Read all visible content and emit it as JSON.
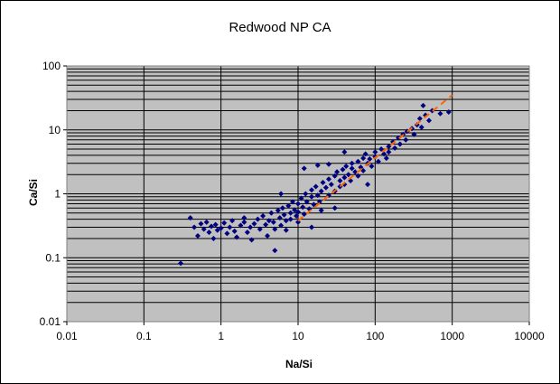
{
  "chart_data": {
    "type": "scatter",
    "title": "Redwood NP CA",
    "xlabel": "Na/Si",
    "ylabel": "Ca/Si",
    "x_scale": "log",
    "y_scale": "log",
    "xlim": [
      0.01,
      10000
    ],
    "ylim": [
      0.01,
      100
    ],
    "x_ticks": [
      "0.01",
      "0.1",
      "1",
      "10",
      "100",
      "1000",
      "10000"
    ],
    "y_ticks": [
      "0.01",
      "0.1",
      "1",
      "10",
      "100"
    ],
    "grid": "on",
    "legend": "none",
    "colors": {
      "plot_bg": "#c0c0c0",
      "marker": "#000080",
      "trend": "#ff6600"
    },
    "trendline": {
      "style": "dashed",
      "x": [
        10,
        1000
      ],
      "y": [
        0.38,
        35
      ]
    },
    "series": [
      {
        "marker": "diamond",
        "points": [
          [
            0.3,
            0.082
          ],
          [
            0.4,
            0.42
          ],
          [
            0.45,
            0.3
          ],
          [
            0.5,
            0.22
          ],
          [
            0.55,
            0.34
          ],
          [
            0.6,
            0.28
          ],
          [
            0.65,
            0.36
          ],
          [
            0.7,
            0.25
          ],
          [
            0.75,
            0.31
          ],
          [
            0.8,
            0.2
          ],
          [
            0.85,
            0.33
          ],
          [
            0.9,
            0.27
          ],
          [
            1.0,
            0.29
          ],
          [
            1.1,
            0.35
          ],
          [
            1.2,
            0.24
          ],
          [
            1.3,
            0.3
          ],
          [
            1.4,
            0.38
          ],
          [
            1.5,
            0.26
          ],
          [
            1.6,
            0.21
          ],
          [
            1.8,
            0.32
          ],
          [
            2.0,
            0.36
          ],
          [
            2.0,
            0.42
          ],
          [
            2.2,
            0.25
          ],
          [
            2.4,
            0.3
          ],
          [
            2.5,
            0.19
          ],
          [
            2.7,
            0.34
          ],
          [
            3.0,
            0.4
          ],
          [
            3.2,
            0.28
          ],
          [
            3.5,
            0.45
          ],
          [
            3.8,
            0.33
          ],
          [
            4.0,
            0.22
          ],
          [
            4.2,
            0.38
          ],
          [
            4.5,
            0.5
          ],
          [
            4.8,
            0.36
          ],
          [
            5.0,
            0.28
          ],
          [
            5.0,
            0.13
          ],
          [
            5.5,
            0.55
          ],
          [
            5.8,
            0.42
          ],
          [
            6.0,
            0.32
          ],
          [
            6.3,
            0.6
          ],
          [
            6.6,
            0.47
          ],
          [
            7.0,
            0.38
          ],
          [
            7.0,
            0.27
          ],
          [
            7.5,
            0.65
          ],
          [
            8.0,
            0.5
          ],
          [
            8.0,
            0.4
          ],
          [
            8.5,
            0.75
          ],
          [
            9.0,
            0.56
          ],
          [
            9.5,
            0.45
          ],
          [
            10,
            0.7
          ],
          [
            10,
            0.52
          ],
          [
            10,
            0.36
          ],
          [
            11,
            0.85
          ],
          [
            11.5,
            0.62
          ],
          [
            12,
            0.48
          ],
          [
            12.5,
            1.0
          ],
          [
            13,
            0.75
          ],
          [
            14,
            0.58
          ],
          [
            15,
            0.9
          ],
          [
            15,
            1.15
          ],
          [
            16,
            0.68
          ],
          [
            17,
            1.3
          ],
          [
            18,
            0.95
          ],
          [
            19,
            0.75
          ],
          [
            20,
            1.1
          ],
          [
            20,
            0.55
          ],
          [
            21,
            1.5
          ],
          [
            23,
            1.25
          ],
          [
            25,
            0.95
          ],
          [
            25,
            1.7
          ],
          [
            27,
            1.4
          ],
          [
            30,
            1.1
          ],
          [
            30,
            1.9
          ],
          [
            32,
            2.2
          ],
          [
            35,
            1.6
          ],
          [
            35,
            1.3
          ],
          [
            38,
            2.4
          ],
          [
            40,
            1.8
          ],
          [
            40,
            1.4
          ],
          [
            42,
            2.7
          ],
          [
            45,
            2.0
          ],
          [
            48,
            1.6
          ],
          [
            50,
            2.5
          ],
          [
            50,
            3.0
          ],
          [
            55,
            2.2
          ],
          [
            60,
            3.2
          ],
          [
            60,
            1.9
          ],
          [
            65,
            2.6
          ],
          [
            70,
            3.6
          ],
          [
            70,
            2.3
          ],
          [
            75,
            4.2
          ],
          [
            80,
            3.0
          ],
          [
            85,
            3.5
          ],
          [
            90,
            2.7
          ],
          [
            100,
            4.5
          ],
          [
            100,
            3.8
          ],
          [
            110,
            3.2
          ],
          [
            120,
            5.0
          ],
          [
            130,
            4.2
          ],
          [
            140,
            3.6
          ],
          [
            150,
            5.5
          ],
          [
            150,
            4.5
          ],
          [
            170,
            6.5
          ],
          [
            180,
            5.2
          ],
          [
            200,
            7.5
          ],
          [
            210,
            6.0
          ],
          [
            230,
            8.5
          ],
          [
            250,
            7.0
          ],
          [
            260,
            9.5
          ],
          [
            300,
            10.5
          ],
          [
            320,
            8.5
          ],
          [
            350,
            12
          ],
          [
            380,
            15
          ],
          [
            400,
            11
          ],
          [
            420,
            24
          ],
          [
            450,
            17
          ],
          [
            500,
            14
          ],
          [
            550,
            20
          ],
          [
            900,
            19
          ],
          [
            700,
            18
          ],
          [
            18,
            2.8
          ],
          [
            40,
            4.5
          ],
          [
            15,
            0.3
          ],
          [
            12,
            2.5
          ],
          [
            6,
            1.0
          ],
          [
            30,
            0.6
          ],
          [
            80,
            1.4
          ],
          [
            25,
            2.9
          ]
        ]
      }
    ]
  }
}
